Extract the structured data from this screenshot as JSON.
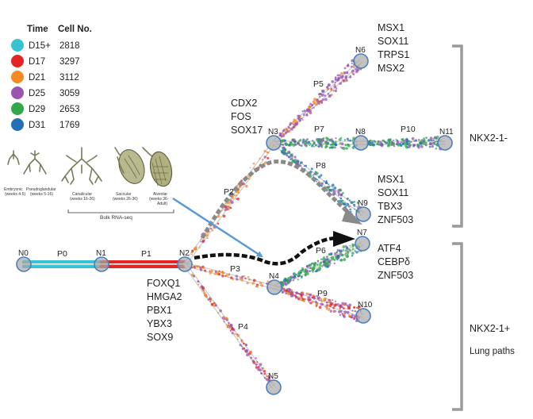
{
  "legend": {
    "header_time": "Time",
    "header_cells": "Cell No.",
    "rows": [
      {
        "time": "D15+",
        "cells": "2818",
        "color": "#36c3d4"
      },
      {
        "time": "D17",
        "cells": "3297",
        "color": "#e32525"
      },
      {
        "time": "D21",
        "cells": "3112",
        "color": "#f58a25"
      },
      {
        "time": "D25",
        "cells": "3059",
        "color": "#9a55b0"
      },
      {
        "time": "D29",
        "cells": "2653",
        "color": "#31a84a"
      },
      {
        "time": "D31",
        "cells": "1769",
        "color": "#2470b7"
      }
    ]
  },
  "lung_stages": {
    "items": [
      {
        "name": "Embryonic",
        "range": "(weeks 4-5)"
      },
      {
        "name": "Pseudoglandular",
        "range": "(weeks 5-16)"
      },
      {
        "name": "Canalicular",
        "range": "(weeks 16-26)"
      },
      {
        "name": "Saccular",
        "range": "(weeks 26-36)"
      },
      {
        "name": "Alveolar",
        "range": "(weeks 36-"
      },
      {
        "name": "",
        "range": "Adult)"
      }
    ],
    "bulk_label": "Bulk RNA-seq"
  },
  "nodes": [
    "N0",
    "N1",
    "N2",
    "N3",
    "N4",
    "N5",
    "N6",
    "N7",
    "N8",
    "N9",
    "N10",
    "N11"
  ],
  "paths": [
    "P0",
    "P1",
    "P2",
    "P3",
    "P4",
    "P5",
    "P6",
    "P7",
    "P8",
    "P9",
    "P10"
  ],
  "genes": {
    "n2": [
      "FOXQ1",
      "HMGA2",
      "PBX1",
      "YBX3",
      "SOX9"
    ],
    "n3": [
      "CDX2",
      "FOS",
      "SOX17"
    ],
    "n6": [
      "MSX1",
      "SOX11",
      "TRPS1",
      "MSX2"
    ],
    "n9": [
      "MSX1",
      "SOX11",
      "TBX3",
      "ZNF503"
    ],
    "n7": [
      "ATF4",
      "CEBPδ",
      "ZNF503"
    ]
  },
  "groups": {
    "negative": "NKX2-1-",
    "positive": "NKX2-1+",
    "positive_sub": "Lung paths"
  }
}
